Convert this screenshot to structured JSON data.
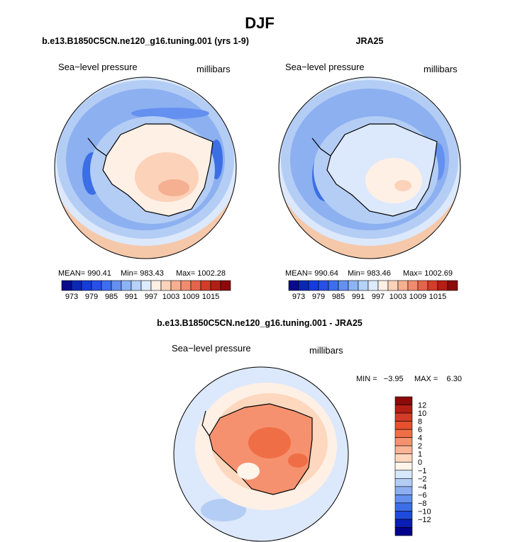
{
  "page": {
    "title": "DJF"
  },
  "chart_data": [
    {
      "type": "heatmap",
      "title": "b.e13.B1850C5CN.ne120_g16.tuning.001 (yrs 1-9)",
      "variable_label": "Sea−level pressure",
      "units_label": "millibars",
      "stats": {
        "mean": "990.41",
        "min": "983.43",
        "max": "1002.28"
      },
      "stats_text": {
        "mean": "MEAN= 990.41",
        "min": "Min= 983.43",
        "max": "Max= 1002.28"
      },
      "colorbar": {
        "orientation": "horizontal",
        "labels": [
          "973",
          "979",
          "985",
          "991",
          "997",
          "1003",
          "1009",
          "1015"
        ],
        "colors": [
          "#0a0a8c",
          "#0a28b4",
          "#143cdc",
          "#2850e6",
          "#3c6ef0",
          "#6490f0",
          "#8cb4f5",
          "#b4d2fa",
          "#dcebfd",
          "#fff0e6",
          "#fcd2b9",
          "#f5af91",
          "#f08c6e",
          "#e6644b",
          "#d23c28",
          "#b41e14",
          "#8c0a0a"
        ]
      }
    },
    {
      "type": "heatmap",
      "title": "JRA25",
      "variable_label": "Sea−level pressure",
      "units_label": "millibars",
      "stats": {
        "mean": "990.64",
        "min": "983.46",
        "max": "1002.69"
      },
      "stats_text": {
        "mean": "MEAN= 990.64",
        "min": "Min= 983.46",
        "max": "Max= 1002.69"
      },
      "colorbar": {
        "orientation": "horizontal",
        "labels": [
          "973",
          "979",
          "985",
          "991",
          "997",
          "1003",
          "1009",
          "1015"
        ],
        "colors": [
          "#0a0a8c",
          "#0a28b4",
          "#143cdc",
          "#2850e6",
          "#3c6ef0",
          "#6490f0",
          "#8cb4f5",
          "#b4d2fa",
          "#dcebfd",
          "#fff0e6",
          "#fcd2b9",
          "#f5af91",
          "#f08c6e",
          "#e6644b",
          "#d23c28",
          "#b41e14",
          "#8c0a0a"
        ]
      }
    },
    {
      "type": "heatmap",
      "title": "b.e13.B1850C5CN.ne120_g16.tuning.001 - JRA25",
      "variable_label": "Sea−level pressure",
      "units_label": "millibars",
      "stats": {
        "min": "-3.95",
        "max": "6.30"
      },
      "stats_text": {
        "min": "MIN =   −3.95",
        "max": "MAX =    6.30"
      },
      "colorbar": {
        "orientation": "vertical",
        "labels": [
          "12",
          "10",
          "8",
          "6",
          "4",
          "2",
          "1",
          "0",
          "−1",
          "−2",
          "−4",
          "−6",
          "−8",
          "−10",
          "−12"
        ],
        "colors": [
          "#8c0a0a",
          "#b41e14",
          "#d23c28",
          "#e6502d",
          "#f06e46",
          "#f5916e",
          "#fab496",
          "#fdd7be",
          "#fff5eb",
          "#d7e8fa",
          "#b4cdf5",
          "#8caff0",
          "#6491f0",
          "#3c6ee6",
          "#1e4bdc",
          "#0a1eb4",
          "#00008c"
        ]
      }
    }
  ]
}
